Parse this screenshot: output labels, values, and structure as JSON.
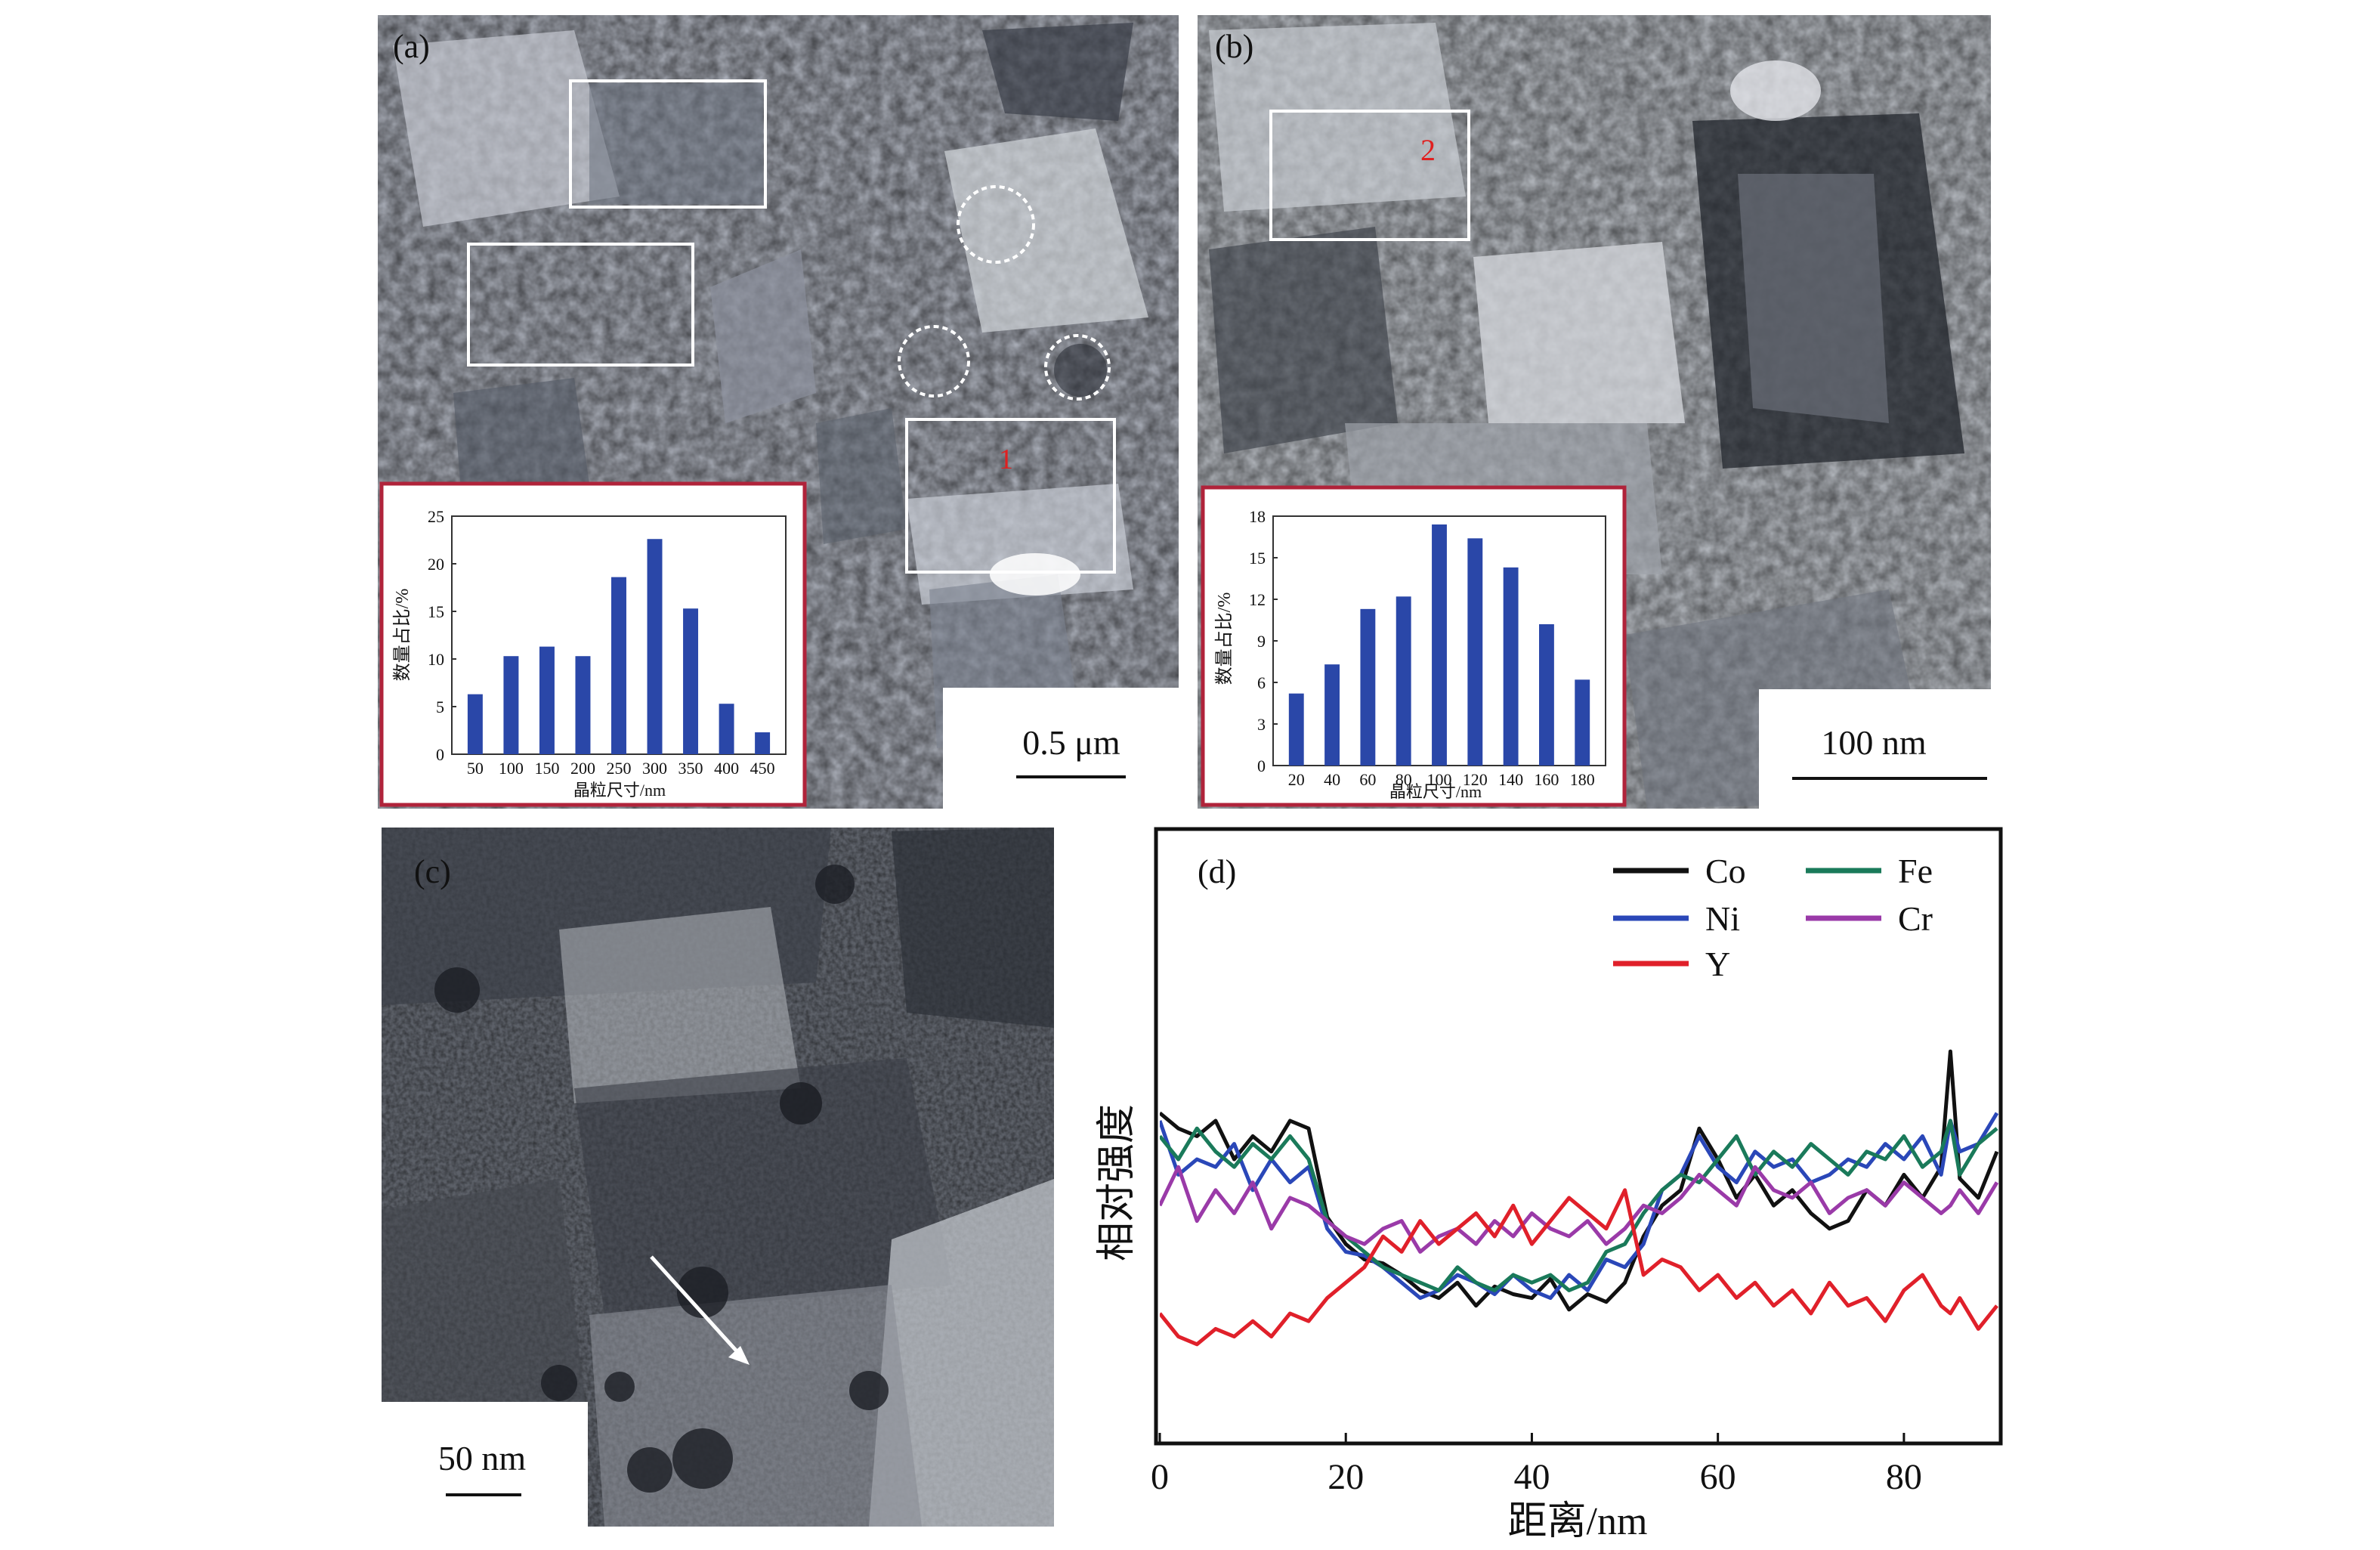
{
  "panels": {
    "a": {
      "label": "(a)",
      "box_labels": [
        "1"
      ],
      "scale_bar": "0.5 μm"
    },
    "b": {
      "label": "(b)",
      "box_labels": [
        "2"
      ],
      "scale_bar": "100 nm"
    },
    "c": {
      "label": "(c)",
      "scale_bar": "50 nm"
    },
    "d": {
      "label": "(d)"
    }
  },
  "colors": {
    "bar": "#2a47a8",
    "inset_border": "#b0233a",
    "box": "#ffffff",
    "marker_label": "#e02020",
    "Co": "#111111",
    "Ni": "#2a47b8",
    "Y": "#e0202a",
    "Fe": "#1a7a5a",
    "Cr": "#9a3aa8"
  },
  "chart_data": [
    {
      "type": "bar",
      "panel": "a-inset",
      "categories": [
        "50",
        "100",
        "150",
        "200",
        "250",
        "300",
        "350",
        "400",
        "450"
      ],
      "values": [
        6.3,
        10.3,
        11.3,
        10.3,
        18.6,
        22.6,
        15.3,
        5.3,
        2.3
      ],
      "xlabel": "晶粒尺寸/nm",
      "ylabel": "数量占比/%",
      "ylim": [
        0,
        25
      ],
      "yticks": [
        "0",
        "5",
        "10",
        "15",
        "20",
        "25"
      ]
    },
    {
      "type": "bar",
      "panel": "b-inset",
      "categories": [
        "20",
        "40",
        "60",
        "80",
        "100",
        "120",
        "140",
        "160",
        "180"
      ],
      "values": [
        5.2,
        7.3,
        11.3,
        12.2,
        17.4,
        16.4,
        14.3,
        10.2,
        6.2
      ],
      "xlabel": "晶粒尺寸/nm",
      "ylabel": "数量占比/%",
      "ylim": [
        0,
        18
      ],
      "yticks": [
        "0",
        "3",
        "6",
        "9",
        "12",
        "15",
        "18"
      ]
    },
    {
      "type": "line",
      "panel": "d",
      "xlabel": "距离/nm",
      "ylabel": "相对强度",
      "xlim": [
        0,
        90
      ],
      "ylim": [
        0,
        100
      ],
      "xticks": [
        "0",
        "20",
        "40",
        "60",
        "80"
      ],
      "x": [
        0,
        2,
        4,
        6,
        8,
        10,
        12,
        14,
        16,
        18,
        20,
        22,
        24,
        26,
        28,
        30,
        32,
        34,
        36,
        38,
        40,
        42,
        44,
        46,
        48,
        50,
        52,
        54,
        56,
        58,
        60,
        62,
        64,
        66,
        68,
        70,
        72,
        74,
        76,
        78,
        80,
        82,
        84,
        85,
        86,
        88,
        90
      ],
      "series": [
        {
          "name": "Co",
          "color": "Co",
          "values": [
            72,
            68,
            66,
            70,
            60,
            66,
            62,
            70,
            68,
            45,
            38,
            34,
            33,
            30,
            26,
            24,
            28,
            22,
            27,
            25,
            24,
            29,
            21,
            25,
            23,
            28,
            40,
            48,
            52,
            68,
            60,
            50,
            56,
            48,
            52,
            46,
            42,
            44,
            52,
            48,
            56,
            50,
            58,
            88,
            55,
            50,
            62
          ]
        },
        {
          "name": "Ni",
          "color": "Ni",
          "values": [
            70,
            56,
            60,
            58,
            64,
            52,
            60,
            54,
            58,
            42,
            36,
            35,
            32,
            28,
            24,
            26,
            30,
            28,
            25,
            30,
            26,
            24,
            30,
            26,
            34,
            32,
            38,
            52,
            56,
            66,
            58,
            54,
            62,
            58,
            60,
            54,
            56,
            60,
            58,
            64,
            60,
            66,
            56,
            70,
            62,
            64,
            72
          ]
        },
        {
          "name": "Fe",
          "color": "Fe",
          "values": [
            66,
            60,
            68,
            62,
            58,
            64,
            60,
            66,
            60,
            44,
            40,
            36,
            32,
            30,
            28,
            26,
            32,
            28,
            26,
            30,
            28,
            30,
            26,
            28,
            36,
            38,
            46,
            52,
            56,
            54,
            60,
            66,
            56,
            62,
            58,
            64,
            60,
            56,
            62,
            60,
            66,
            58,
            62,
            70,
            56,
            64,
            68
          ]
        },
        {
          "name": "Cr",
          "color": "Cr",
          "values": [
            48,
            58,
            44,
            52,
            46,
            54,
            42,
            50,
            48,
            44,
            40,
            38,
            42,
            44,
            36,
            40,
            42,
            38,
            44,
            40,
            46,
            42,
            40,
            44,
            38,
            42,
            48,
            46,
            50,
            56,
            52,
            48,
            58,
            52,
            50,
            54,
            46,
            50,
            52,
            48,
            54,
            50,
            46,
            48,
            52,
            46,
            54
          ]
        },
        {
          "name": "Y",
          "color": "Y",
          "values": [
            20,
            14,
            12,
            16,
            14,
            18,
            14,
            20,
            18,
            24,
            28,
            32,
            40,
            36,
            44,
            38,
            42,
            46,
            40,
            48,
            38,
            44,
            50,
            46,
            42,
            52,
            30,
            34,
            32,
            26,
            30,
            24,
            28,
            22,
            26,
            20,
            28,
            22,
            24,
            18,
            26,
            30,
            22,
            20,
            24,
            16,
            22
          ]
        }
      ]
    }
  ]
}
